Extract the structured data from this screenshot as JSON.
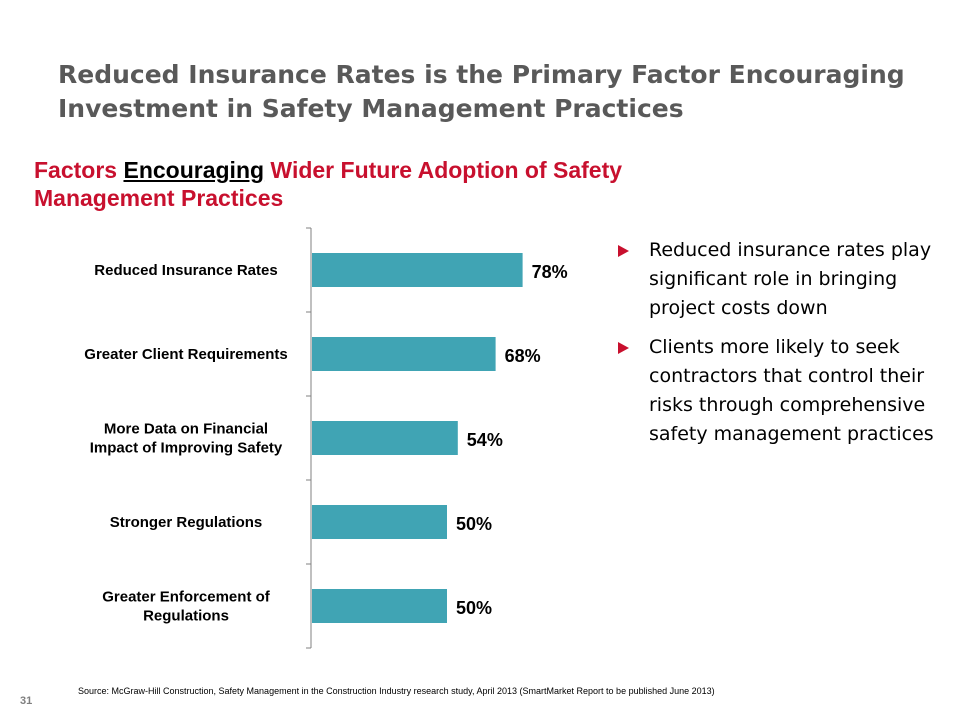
{
  "slide": {
    "title": "Reduced Insurance Rates is the Primary Factor Encouraging Investment in Safety Management Practices",
    "page_number": "31",
    "source": "Source: McGraw-Hill Construction, Safety Management in the Construction Industry research study, April 2013 (SmartMarket Report to be published June 2013)"
  },
  "chart_title": {
    "part1": "Factors ",
    "emphasis": "Encouraging",
    "part2": " Wider Future Adoption of Safety Management Practices"
  },
  "bullets": [
    "Reduced insurance rates play significant role in bringing project costs down",
    "Clients more likely to seek contractors that control their risks through comprehensive safety management practices"
  ],
  "colors": {
    "bar": "#40a4b4",
    "accent": "#c8102e",
    "title": "#595959",
    "axis": "#808080"
  },
  "chart_data": {
    "type": "bar",
    "orientation": "horizontal",
    "title": "Factors Encouraging Wider Future Adoption of Safety Management Practices",
    "categories": [
      [
        "Reduced Insurance Rates"
      ],
      [
        "Greater Client Requirements"
      ],
      [
        "More Data on Financial",
        "Impact of Improving Safety"
      ],
      [
        "Stronger Regulations"
      ],
      [
        "Greater Enforcement of",
        "Regulations"
      ]
    ],
    "values": [
      78,
      68,
      54,
      50,
      50
    ],
    "value_labels": [
      "78%",
      "68%",
      "54%",
      "50%",
      "50%"
    ],
    "unit": "%",
    "xlim": [
      0,
      100
    ],
    "grid": false,
    "legend": "none"
  }
}
